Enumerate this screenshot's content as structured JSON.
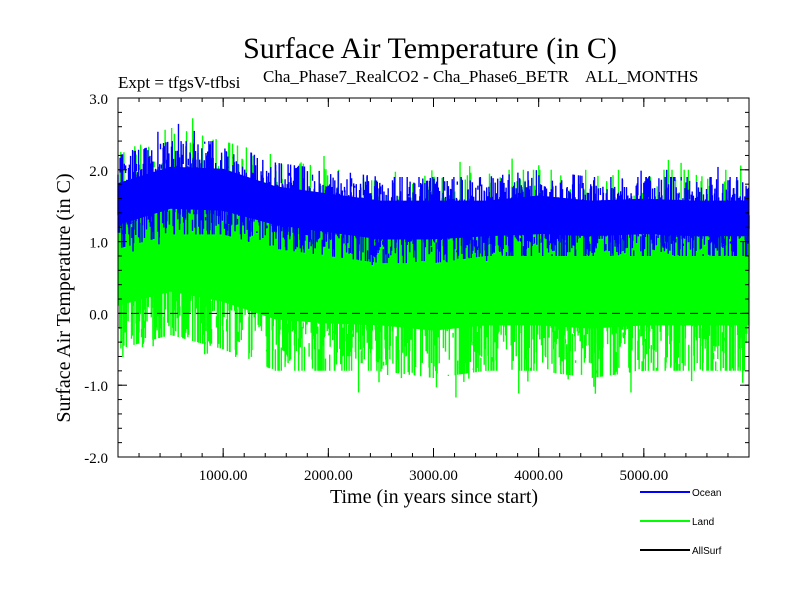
{
  "chart_data": {
    "type": "line",
    "title": "Surface Air Temperature (in C)",
    "subtitle_left": "Expt = tfgsV-tfbsi",
    "subtitle_right": "Cha_Phase7_RealCO2 - Cha_Phase6_BETR    ALL_MONTHS",
    "xlabel": "Time (in years since start)",
    "ylabel": "Surface Air Temperature (in C)",
    "xlim": [
      0,
      6000
    ],
    "ylim": [
      -2.0,
      3.0
    ],
    "x_ticks": [
      1000,
      2000,
      3000,
      4000,
      5000
    ],
    "x_tick_labels": [
      "1000.00",
      "2000.00",
      "3000.00",
      "4000.00",
      "5000.00"
    ],
    "y_ticks": [
      -2.0,
      -1.0,
      0.0,
      1.0,
      2.0,
      3.0
    ],
    "y_tick_labels": [
      "-2.0",
      "-1.0",
      "0.0",
      "1.0",
      "2.0",
      "3.0"
    ],
    "zero_line": 0.0,
    "legend_position": "bottom-right",
    "series": [
      {
        "name": "Land",
        "color": "#00ff00",
        "approx_envelope": {
          "x": [
            0,
            500,
            1000,
            1500,
            2000,
            2500,
            3000,
            3500,
            4000,
            4500,
            5000,
            5500,
            6000
          ],
          "low": [
            -0.5,
            -0.3,
            -0.5,
            -0.8,
            -0.8,
            -0.8,
            -0.9,
            -0.8,
            -0.8,
            -0.9,
            -0.8,
            -0.8,
            -0.8
          ],
          "high": [
            2.2,
            2.6,
            2.4,
            2.2,
            2.0,
            2.0,
            1.9,
            2.0,
            2.0,
            2.0,
            2.0,
            2.0,
            2.0
          ],
          "mean": [
            0.6,
            0.8,
            0.7,
            0.5,
            0.4,
            0.35,
            0.3,
            0.35,
            0.35,
            0.35,
            0.35,
            0.35,
            0.35
          ]
        },
        "min_value": -1.75,
        "max_value": 2.95
      },
      {
        "name": "Ocean",
        "color": "#0000ff",
        "approx_envelope": {
          "x": [
            0,
            500,
            1000,
            1500,
            2000,
            2500,
            3000,
            3500,
            4000,
            4500,
            5000,
            5500,
            6000
          ],
          "low": [
            0.9,
            1.1,
            1.1,
            0.9,
            0.8,
            0.7,
            0.7,
            0.8,
            0.8,
            0.8,
            0.8,
            0.8,
            0.8
          ],
          "high": [
            2.2,
            2.4,
            2.4,
            2.1,
            2.0,
            1.9,
            1.9,
            1.9,
            2.0,
            1.9,
            1.9,
            1.9,
            1.9
          ],
          "mean": [
            1.5,
            1.75,
            1.7,
            1.5,
            1.4,
            1.3,
            1.3,
            1.3,
            1.35,
            1.3,
            1.35,
            1.3,
            1.3
          ]
        }
      },
      {
        "name": "AllSurf",
        "color": "#000000",
        "approx_envelope": null
      }
    ]
  }
}
